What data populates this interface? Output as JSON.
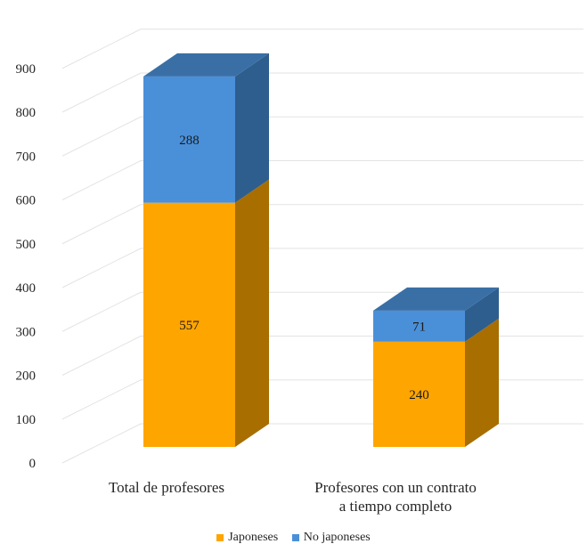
{
  "chart_data": {
    "type": "bar",
    "stacked": true,
    "style": "3d",
    "categories": [
      [
        "Total de profesores"
      ],
      [
        "Profesores con un contrato",
        "a tiempo completo"
      ]
    ],
    "series": [
      {
        "name": "Japoneses",
        "values": [
          557,
          240
        ],
        "color": "#FFA500",
        "side_color": "#A86E00",
        "top_color": "#C98A00"
      },
      {
        "name": "No japoneses",
        "values": [
          288,
          71
        ],
        "color": "#4A90D9",
        "side_color": "#2E5E8E",
        "top_color": "#3A6FA6"
      }
    ],
    "y_ticks": [
      0,
      100,
      200,
      300,
      400,
      500,
      600,
      700,
      800,
      900
    ],
    "ylim": [
      0,
      900
    ],
    "grid": true,
    "legend_position": "bottom"
  }
}
